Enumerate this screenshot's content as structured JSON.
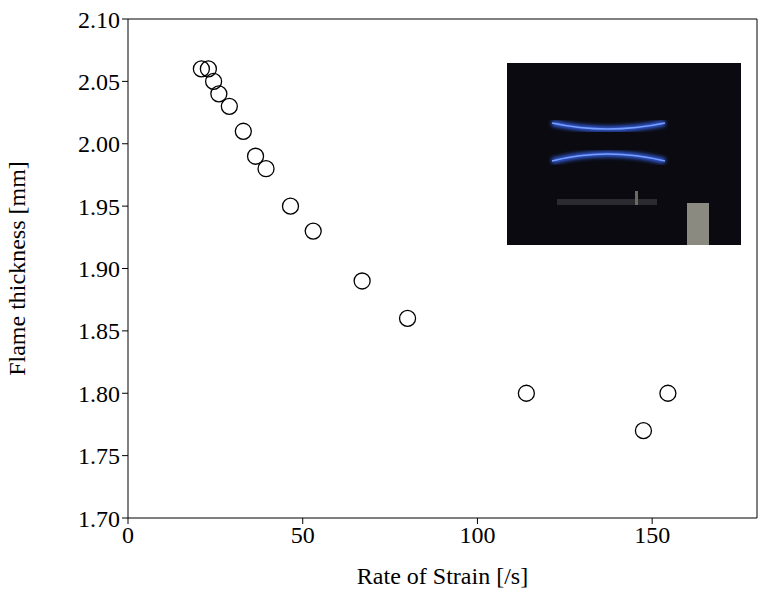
{
  "chart_data": {
    "type": "scatter",
    "x_label": "Rate of Strain [/s]",
    "y_label": "Flame thickness [mm]",
    "series": [
      {
        "name": "Flame thickness",
        "color": "#000000",
        "marker": "open_circle",
        "x": [
          21,
          23,
          24.5,
          26,
          29,
          33,
          36.5,
          39.5,
          46.5,
          53,
          67,
          80,
          114,
          147.5,
          154.5
        ],
        "values": [
          2.06,
          2.06,
          2.05,
          2.04,
          2.03,
          2.01,
          1.99,
          1.98,
          1.95,
          1.93,
          1.89,
          1.86,
          1.8,
          1.77,
          1.8
        ]
      }
    ],
    "xlim": [
      0,
      180
    ],
    "xticks": [
      0,
      50,
      100,
      150
    ],
    "ylim": [
      1.7,
      2.1
    ],
    "yticks": [
      {
        "value": 1.7,
        "label": "1.70"
      },
      {
        "value": 1.75,
        "label": "1.75"
      },
      {
        "value": 1.8,
        "label": "1.80"
      },
      {
        "value": 1.85,
        "label": "1.85"
      },
      {
        "value": 1.9,
        "label": "1.90"
      },
      {
        "value": 1.95,
        "label": "1.95"
      },
      {
        "value": 2.0,
        "label": "2.00"
      },
      {
        "value": 2.05,
        "label": "2.05"
      },
      {
        "value": 2.1,
        "label": "2.10"
      }
    ],
    "grid": false
  }
}
